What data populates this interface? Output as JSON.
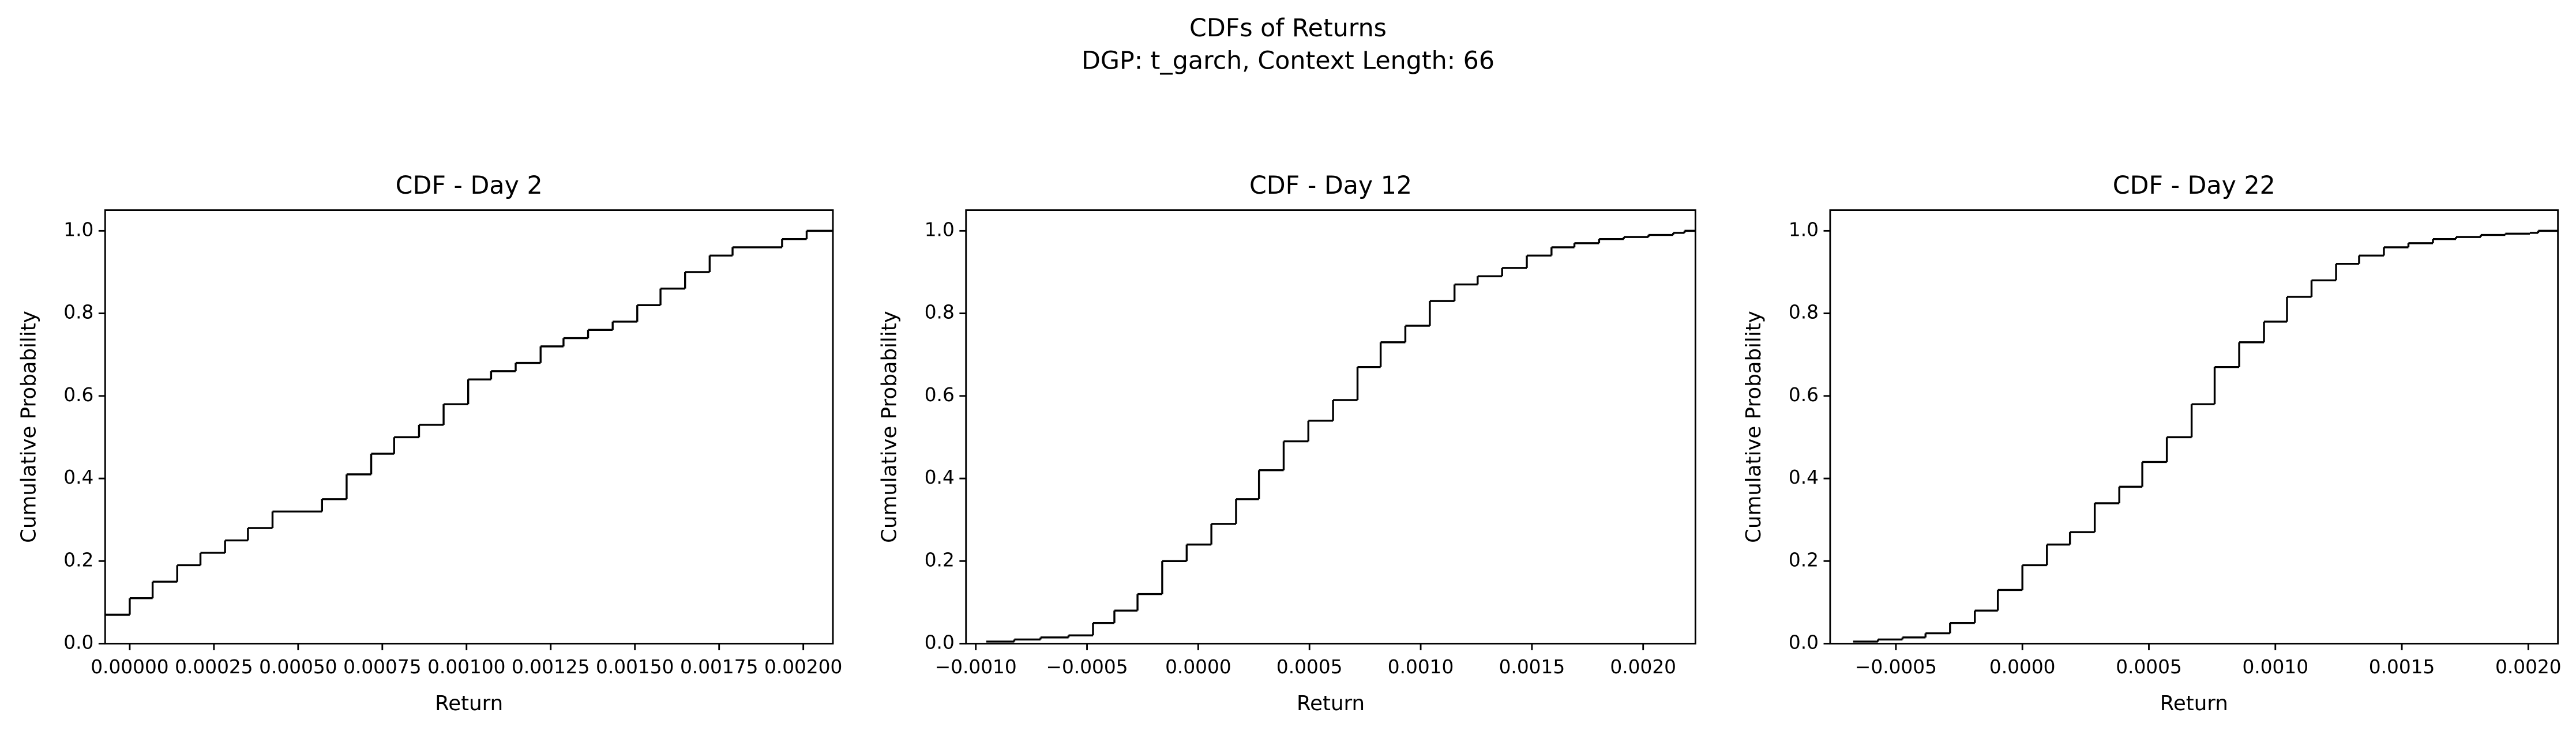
{
  "title": "CDFs of Returns",
  "subtitle": "DGP: t_garch, Context Length: 66",
  "chart_data": [
    {
      "type": "step",
      "title": "CDF - Day 2",
      "x_label": "Return",
      "y_label": "Cumulative Probability",
      "color": "#000000",
      "x": [
        -7.3e-05,
        0,
        6.8e-05,
        0.000141,
        0.00021,
        0.000283,
        0.000351,
        0.000424,
        0.000571,
        0.000644,
        0.000717,
        0.000785,
        0.000859,
        0.000932,
        0.001005,
        0.001073,
        0.001146,
        0.00122,
        0.001288,
        0.001361,
        0.001434,
        0.001507,
        0.001576,
        0.001649,
        0.001722,
        0.00179,
        0.001937,
        0.00201
      ],
      "values": [
        0.07,
        0.11,
        0.15,
        0.19,
        0.22,
        0.25,
        0.28,
        0.32,
        0.35,
        0.41,
        0.46,
        0.5,
        0.53,
        0.58,
        0.64,
        0.66,
        0.68,
        0.72,
        0.74,
        0.76,
        0.78,
        0.82,
        0.86,
        0.9,
        0.94,
        0.96,
        0.98,
        1.0
      ],
      "xlim": [
        -7.3e-05,
        0.002088
      ],
      "ylim": [
        0,
        1.05
      ],
      "xticks": [
        {
          "value": 0,
          "label": "0.00000"
        },
        {
          "value": 0.00025,
          "label": "0.00025"
        },
        {
          "value": 0.0005,
          "label": "0.00050"
        },
        {
          "value": 0.00075,
          "label": "0.00075"
        },
        {
          "value": 0.001,
          "label": "0.00100"
        },
        {
          "value": 0.00125,
          "label": "0.00125"
        },
        {
          "value": 0.0015,
          "label": "0.00150"
        },
        {
          "value": 0.00175,
          "label": "0.00175"
        },
        {
          "value": 0.002,
          "label": "0.00200"
        }
      ],
      "yticks": [
        {
          "value": 0,
          "label": "0.0"
        },
        0.2,
        0.4,
        0.6,
        0.8,
        {
          "value": 1,
          "label": "1.0"
        }
      ]
    },
    {
      "type": "step",
      "title": "CDF - Day 12",
      "x_label": "Return",
      "y_label": "Cumulative Probability",
      "color": "#000000",
      "x": [
        -0.000953,
        -0.000827,
        -0.000709,
        -0.000583,
        -0.000473,
        -0.000377,
        -0.000273,
        -0.000162,
        -5.2e-05,
        5.9e-05,
        0.00017,
        0.000273,
        0.000384,
        0.000495,
        0.000606,
        0.000716,
        0.00082,
        0.000931,
        0.001041,
        0.001152,
        0.001256,
        0.001366,
        0.001477,
        0.001588,
        0.001691,
        0.001802,
        0.001913,
        0.002024,
        0.002135,
        0.002186
      ],
      "values": [
        0.005,
        0.01,
        0.015,
        0.02,
        0.05,
        0.08,
        0.12,
        0.2,
        0.24,
        0.29,
        0.35,
        0.42,
        0.49,
        0.54,
        0.59,
        0.67,
        0.73,
        0.77,
        0.83,
        0.87,
        0.89,
        0.91,
        0.94,
        0.96,
        0.97,
        0.98,
        0.985,
        0.99,
        0.995,
        1.0
      ],
      "xlim": [
        -0.001044,
        0.002235
      ],
      "ylim": [
        0,
        1.05
      ],
      "xticks": [
        {
          "value": -0.001,
          "label": "−0.0010"
        },
        {
          "value": -0.0005,
          "label": "−0.0005"
        },
        {
          "value": 0,
          "label": "0.0000"
        },
        {
          "value": 0.0005,
          "label": "0.0005"
        },
        {
          "value": 0.001,
          "label": "0.0010"
        },
        {
          "value": 0.0015,
          "label": "0.0015"
        },
        {
          "value": 0.002,
          "label": "0.0020"
        }
      ],
      "yticks": [
        {
          "value": 0,
          "label": "0.0"
        },
        0.2,
        0.4,
        0.6,
        0.8,
        {
          "value": 1,
          "label": "1.0"
        }
      ]
    },
    {
      "type": "step",
      "title": "CDF - Day 22",
      "x_label": "Return",
      "y_label": "Cumulative Probability",
      "color": "#000000",
      "x": [
        -0.000669,
        -0.000571,
        -0.000474,
        -0.000383,
        -0.000286,
        -0.000188,
        -9.7e-05,
        0,
        9.7e-05,
        0.000188,
        0.000286,
        0.000383,
        0.000474,
        0.000571,
        0.000669,
        0.00076,
        0.000857,
        0.000955,
        0.001046,
        0.001143,
        0.00124,
        0.001331,
        0.001429,
        0.001526,
        0.001623,
        0.001714,
        0.001812,
        0.001909,
        0.002006,
        0.002039
      ],
      "values": [
        0.005,
        0.01,
        0.015,
        0.025,
        0.05,
        0.08,
        0.13,
        0.19,
        0.24,
        0.27,
        0.34,
        0.38,
        0.44,
        0.5,
        0.58,
        0.67,
        0.73,
        0.78,
        0.84,
        0.88,
        0.92,
        0.94,
        0.96,
        0.97,
        0.98,
        0.985,
        0.99,
        0.993,
        0.995,
        1.0
      ],
      "xlim": [
        -0.00076,
        0.002117
      ],
      "ylim": [
        0,
        1.05
      ],
      "xticks": [
        {
          "value": -0.0005,
          "label": "−0.0005"
        },
        {
          "value": 0,
          "label": "0.0000"
        },
        {
          "value": 0.0005,
          "label": "0.0005"
        },
        {
          "value": 0.001,
          "label": "0.0010"
        },
        {
          "value": 0.0015,
          "label": "0.0015"
        },
        {
          "value": 0.002,
          "label": "0.0020"
        }
      ],
      "yticks": [
        {
          "value": 0,
          "label": "0.0"
        },
        0.2,
        0.4,
        0.6,
        0.8,
        {
          "value": 1,
          "label": "1.0"
        }
      ]
    }
  ]
}
